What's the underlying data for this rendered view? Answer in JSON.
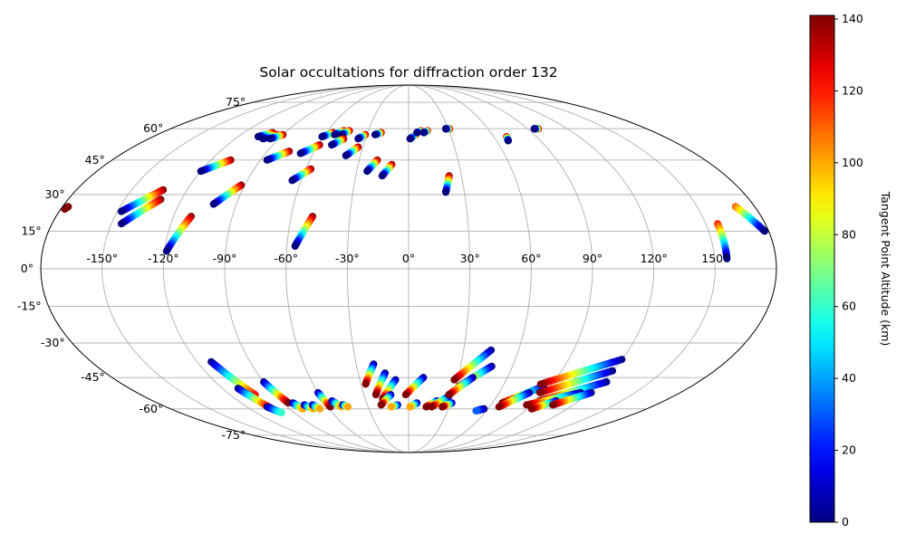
{
  "chart_data": {
    "type": "scatter",
    "projection": "mollweide",
    "title": "Solar occultations for diffraction order 132",
    "xlabel": "",
    "ylabel": "",
    "x_ticks": [
      "-150°",
      "-120°",
      "-90°",
      "-60°",
      "-30°",
      "0°",
      "30°",
      "60°",
      "90°",
      "120°",
      "150°"
    ],
    "x_tick_values": [
      -150,
      -120,
      -90,
      -60,
      -30,
      0,
      30,
      60,
      90,
      120,
      150
    ],
    "y_ticks": [
      "-75°",
      "-60°",
      "-45°",
      "-30°",
      "-15°",
      "0°",
      "15°",
      "30°",
      "45°",
      "60°",
      "75°"
    ],
    "y_tick_values": [
      -75,
      -60,
      -45,
      -30,
      -15,
      0,
      15,
      30,
      45,
      60,
      75
    ],
    "grid": true,
    "colorbar": {
      "label": "Tangent Point Altitude (km)",
      "colormap": "jet",
      "range": [
        0,
        141
      ],
      "ticks": [
        "0",
        "20",
        "40",
        "60",
        "80",
        "100",
        "120",
        "140"
      ],
      "tick_values": [
        0,
        20,
        40,
        60,
        80,
        100,
        120,
        140
      ],
      "placement": "right"
    },
    "tracks": [
      {
        "lon0": -133,
        "lat0": 32,
        "lon1": -148,
        "lat1": 23,
        "alt0": 141,
        "alt1": 0
      },
      {
        "lon0": -131,
        "lat0": 28,
        "lon1": -145,
        "lat1": 18,
        "alt0": 141,
        "alt1": 0
      },
      {
        "lon0": -111,
        "lat0": 21,
        "lon1": -119,
        "lat1": 7,
        "alt0": 141,
        "alt1": 0
      },
      {
        "lon0": -92,
        "lat0": 34,
        "lon1": -102,
        "lat1": 26,
        "alt0": 141,
        "alt1": 0
      },
      {
        "lon0": -108,
        "lat0": 45,
        "lon1": -120,
        "lat1": 40,
        "alt0": 141,
        "alt1": 0
      },
      {
        "lon0": -76,
        "lat0": 49,
        "lon1": -86,
        "lat1": 45,
        "alt0": 141,
        "alt1": 0
      },
      {
        "lon0": -57,
        "lat0": 41,
        "lon1": -65,
        "lat1": 36,
        "alt0": 141,
        "alt1": 0
      },
      {
        "lon0": -59,
        "lat0": 52,
        "lon1": -68,
        "lat1": 48,
        "alt0": 141,
        "alt1": 0
      },
      {
        "lon0": -99,
        "lat0": 58,
        "lon1": -106,
        "lat1": 56,
        "alt0": 141,
        "alt1": 0
      },
      {
        "lon0": -94,
        "lat0": 57,
        "lon1": -101,
        "lat1": 55,
        "alt0": 141,
        "alt1": 0
      },
      {
        "lon0": -90,
        "lat0": 57,
        "lon1": -96,
        "lat1": 55,
        "alt0": 141,
        "alt1": 0
      },
      {
        "lon0": -55,
        "lat0": 58,
        "lon1": -61,
        "lat1": 56,
        "alt0": 141,
        "alt1": 0
      },
      {
        "lon0": -48,
        "lat0": 59,
        "lon1": -53,
        "lat1": 57,
        "alt0": 141,
        "alt1": 0
      },
      {
        "lon0": -44,
        "lat0": 59,
        "lon1": -48,
        "lat1": 57,
        "alt0": 141,
        "alt1": 0
      },
      {
        "lon0": -45,
        "lat0": 55,
        "lon1": -51,
        "lat1": 52,
        "alt0": 141,
        "alt1": 0
      },
      {
        "lon0": -33,
        "lat0": 51,
        "lon1": -39,
        "lat1": 47,
        "alt0": 141,
        "alt1": 0
      },
      {
        "lon0": -31,
        "lat0": 57,
        "lon1": -35,
        "lat1": 55,
        "alt0": 141,
        "alt1": 0
      },
      {
        "lon0": -20,
        "lat0": 58,
        "lon1": -24,
        "lat1": 57,
        "alt0": 141,
        "alt1": 0
      },
      {
        "lon0": -49,
        "lat0": 21,
        "lon1": -56,
        "lat1": 9,
        "alt0": 141,
        "alt1": 0
      },
      {
        "lon0": -19,
        "lat0": 45,
        "lon1": -24,
        "lat1": 40,
        "alt0": 141,
        "alt1": 0
      },
      {
        "lon0": -10,
        "lat0": 43,
        "lon1": -15,
        "lat1": 38,
        "alt0": 141,
        "alt1": 0
      },
      {
        "lon0": 5,
        "lat0": 57,
        "lon1": 1,
        "lat1": 55,
        "alt0": 141,
        "alt1": 0
      },
      {
        "lon0": 9,
        "lat0": 59,
        "lon1": 6,
        "lat1": 58,
        "alt0": 141,
        "alt1": 0
      },
      {
        "lon0": 14,
        "lat0": 59,
        "lon1": 11,
        "lat1": 58,
        "alt0": 141,
        "alt1": 0
      },
      {
        "lon0": 23,
        "lat0": 38,
        "lon1": 20,
        "lat1": 31,
        "alt0": 141,
        "alt1": 0
      },
      {
        "lon0": 31,
        "lat0": 60,
        "lon1": 28,
        "lat1": 60,
        "alt0": 141,
        "alt1": 0
      },
      {
        "lon0": 69,
        "lat0": 56,
        "lon1": 68,
        "lat1": 54,
        "alt0": 141,
        "alt1": 0
      },
      {
        "lon0": 98,
        "lat0": 60,
        "lon1": 95,
        "lat1": 60,
        "alt0": 141,
        "alt1": 0
      },
      {
        "lon0": 156,
        "lat0": 18,
        "lon1": 156,
        "lat1": 4,
        "alt0": 120,
        "alt1": 0
      },
      {
        "lon0": 170,
        "lat0": 25,
        "lon1": 178,
        "lat1": 15,
        "alt0": 110,
        "alt1": 0
      },
      {
        "lon0": -177,
        "lat0": 25,
        "lon1": -178,
        "lat1": 24,
        "alt0": 141,
        "alt1": 141
      },
      {
        "lon0": -112,
        "lat0": -38,
        "lon1": -103,
        "lat1": -53,
        "alt0": 0,
        "alt1": 120
      },
      {
        "lon0": -110,
        "lat0": -50,
        "lon1": -103,
        "lat1": -60,
        "alt0": 0,
        "alt1": 141
      },
      {
        "lon0": -105,
        "lat0": -59,
        "lon1": -100,
        "lat1": -62,
        "alt0": 0,
        "alt1": 60
      },
      {
        "lon0": -90,
        "lat0": -47,
        "lon1": -86,
        "lat1": -57,
        "alt0": 0,
        "alt1": 141
      },
      {
        "lon0": -83,
        "lat0": -57,
        "lon1": -80,
        "lat1": -60,
        "alt0": 0,
        "alt1": 100
      },
      {
        "lon0": -76,
        "lat0": -58,
        "lon1": -72,
        "lat1": -60,
        "alt0": 0,
        "alt1": 100
      },
      {
        "lon0": -70,
        "lat0": -58,
        "lon1": -67,
        "lat1": -60,
        "alt0": 0,
        "alt1": 100
      },
      {
        "lon0": -60,
        "lat0": -52,
        "lon1": -58,
        "lat1": -59,
        "alt0": 0,
        "alt1": 141
      },
      {
        "lon0": -54,
        "lat0": -56,
        "lon1": -50,
        "lat1": -59,
        "alt0": 0,
        "alt1": 100
      },
      {
        "lon0": -48,
        "lat0": -58,
        "lon1": -45,
        "lat1": -59,
        "alt0": 0,
        "alt1": 100
      },
      {
        "lon0": -20,
        "lat0": -39,
        "lon1": -27,
        "lat1": -48,
        "alt0": 0,
        "alt1": 141
      },
      {
        "lon0": -14,
        "lat0": -43,
        "lon1": -22,
        "lat1": -53,
        "alt0": 0,
        "alt1": 141
      },
      {
        "lon0": -8,
        "lat0": -46,
        "lon1": -18,
        "lat1": -55,
        "alt0": 0,
        "alt1": 141
      },
      {
        "lon0": -12,
        "lat0": -53,
        "lon1": -20,
        "lat1": -58,
        "alt0": 0,
        "alt1": 141
      },
      {
        "lon0": -8,
        "lat0": -58,
        "lon1": -13,
        "lat1": -59,
        "alt0": 0,
        "alt1": 100
      },
      {
        "lon0": 9,
        "lat0": -45,
        "lon1": -2,
        "lat1": -53,
        "alt0": 0,
        "alt1": 141
      },
      {
        "lon0": 6,
        "lat0": -57,
        "lon1": 1,
        "lat1": -59,
        "alt0": 0,
        "alt1": 100
      },
      {
        "lon0": 20,
        "lat0": -56,
        "lon1": 13,
        "lat1": -59,
        "alt0": 0,
        "alt1": 141
      },
      {
        "lon0": 27,
        "lat0": -54,
        "lon1": 17,
        "lat1": -59,
        "alt0": 0,
        "alt1": 141
      },
      {
        "lon0": 31,
        "lat0": -57,
        "lon1": 25,
        "lat1": -59,
        "alt0": 0,
        "alt1": 141
      },
      {
        "lon0": 45,
        "lat0": -33,
        "lon1": 28,
        "lat1": -46,
        "alt0": 0,
        "alt1": 141
      },
      {
        "lon0": 48,
        "lat0": -40,
        "lon1": 32,
        "lat1": -49,
        "alt0": 0,
        "alt1": 141
      },
      {
        "lon0": 39,
        "lat0": -45,
        "lon1": 27,
        "lat1": -53,
        "alt0": 0,
        "alt1": 141
      },
      {
        "lon0": 57,
        "lat0": -60,
        "lon1": 52,
        "lat1": -61,
        "alt0": 0,
        "alt1": 30
      },
      {
        "lon0": 86,
        "lat0": -49,
        "lon1": 67,
        "lat1": -57,
        "alt0": 0,
        "alt1": 141
      },
      {
        "lon0": 80,
        "lat0": -52,
        "lon1": 67,
        "lat1": -59,
        "alt0": 0,
        "alt1": 141
      },
      {
        "lon0": 120,
        "lat0": -37,
        "lon1": 83,
        "lat1": -48,
        "alt0": 0,
        "alt1": 141
      },
      {
        "lon0": 120,
        "lat0": -42,
        "lon1": 87,
        "lat1": -52,
        "alt0": 0,
        "alt1": 141
      },
      {
        "lon0": 123,
        "lat0": -47,
        "lon1": 92,
        "lat1": -56,
        "alt0": 0,
        "alt1": 141
      },
      {
        "lon0": 114,
        "lat0": -52,
        "lon1": 86,
        "lat1": -58,
        "alt0": 0,
        "alt1": 141
      },
      {
        "lon0": 104,
        "lat0": -56,
        "lon1": 93,
        "lat1": -60,
        "alt0": 0,
        "alt1": 141
      },
      {
        "lon0": 121,
        "lat0": -52,
        "lon1": 105,
        "lat1": -58,
        "alt0": 0,
        "alt1": 141
      }
    ]
  }
}
